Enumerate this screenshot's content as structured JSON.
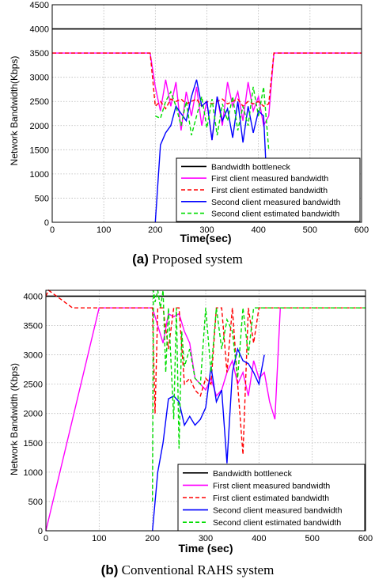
{
  "captions": [
    {
      "tag": "(a)",
      "text": "Proposed system"
    },
    {
      "tag": "(b)",
      "text": "Conventional RAHS system"
    }
  ],
  "colors": {
    "bottleneck": "#000000",
    "first_measured": "#ff00ff",
    "first_estimated": "#ff0000",
    "second_measured": "#0000ff",
    "second_estimated": "#00dd00"
  },
  "chart_data": [
    {
      "type": "line",
      "xlabel": "Time(sec)",
      "ylabel": "Network Bandwidth(Kbps)",
      "xlim": [
        0,
        600
      ],
      "ylim": [
        0,
        4500
      ],
      "xticks": [
        0,
        100,
        200,
        300,
        400,
        500,
        600
      ],
      "yticks": [
        0,
        500,
        1000,
        1500,
        2000,
        2500,
        3000,
        3500,
        4000,
        4500
      ],
      "grid": true,
      "legend_position": "bottom-right",
      "series": [
        {
          "name": "Bandwidth bottleneck",
          "style": "solid",
          "color_key": "bottleneck",
          "x": [
            0,
            600
          ],
          "y": [
            4000,
            4000
          ]
        },
        {
          "name": "First client measured bandwidth",
          "style": "solid",
          "color_key": "first_measured",
          "x": [
            0,
            190,
            200,
            210,
            220,
            230,
            240,
            250,
            260,
            270,
            280,
            290,
            300,
            310,
            320,
            330,
            340,
            350,
            360,
            370,
            380,
            390,
            400,
            410,
            420,
            430,
            600
          ],
          "y": [
            3500,
            3500,
            2800,
            2300,
            2950,
            2400,
            2900,
            1900,
            2700,
            2200,
            2800,
            2000,
            2500,
            1700,
            2600,
            2000,
            2900,
            2400,
            2700,
            2100,
            2900,
            2300,
            2600,
            2000,
            2200,
            3500,
            3500
          ]
        },
        {
          "name": "First client estimated bandwidth",
          "style": "dashed",
          "color_key": "first_estimated",
          "x": [
            0,
            190,
            200,
            210,
            220,
            230,
            240,
            250,
            260,
            270,
            280,
            290,
            300,
            310,
            320,
            330,
            340,
            350,
            360,
            370,
            380,
            390,
            400,
            410,
            420,
            430,
            600
          ],
          "y": [
            3500,
            3500,
            2400,
            2500,
            2350,
            2550,
            2500,
            2550,
            2450,
            2500,
            2550,
            2400,
            2500,
            2450,
            2500,
            2550,
            2450,
            2500,
            2550,
            2400,
            2500,
            2450,
            2500,
            2400,
            2450,
            3500,
            3500
          ]
        },
        {
          "name": "Second client measured bandwidth",
          "style": "solid",
          "color_key": "second_measured",
          "x": [
            200,
            210,
            220,
            230,
            240,
            250,
            260,
            270,
            280,
            290,
            300,
            310,
            320,
            330,
            340,
            350,
            360,
            370,
            380,
            390,
            400,
            410,
            415
          ],
          "y": [
            0,
            1600,
            1850,
            2000,
            2400,
            2250,
            2100,
            2600,
            2950,
            2400,
            2500,
            1700,
            2600,
            2100,
            2350,
            1750,
            2500,
            1650,
            2400,
            1850,
            2300,
            2200,
            1100
          ]
        },
        {
          "name": "Second client estimated bandwidth",
          "style": "dashed",
          "color_key": "second_estimated",
          "x": [
            200,
            210,
            220,
            230,
            240,
            250,
            260,
            270,
            280,
            290,
            300,
            310,
            320,
            330,
            340,
            350,
            360,
            370,
            380,
            390,
            400,
            410,
            420
          ],
          "y": [
            2200,
            2150,
            2500,
            2700,
            2400,
            2000,
            2500,
            1800,
            2200,
            2600,
            1950,
            2550,
            1800,
            2450,
            2100,
            2600,
            1900,
            2400,
            2000,
            2800,
            2200,
            2800,
            1500
          ]
        }
      ]
    },
    {
      "type": "line",
      "xlabel": "Time (sec)",
      "ylabel": "Network Bandwidth (Kbps)",
      "xlim": [
        0,
        600
      ],
      "ylim": [
        0,
        4100
      ],
      "xticks": [
        0,
        100,
        200,
        300,
        400,
        500,
        600
      ],
      "yticks": [
        0,
        500,
        1000,
        1500,
        2000,
        2500,
        3000,
        3500,
        4000
      ],
      "grid": true,
      "legend_position": "bottom-right",
      "series": [
        {
          "name": "Bandwidth bottleneck",
          "style": "solid",
          "color_key": "bottleneck",
          "x": [
            0,
            600
          ],
          "y": [
            4000,
            4000
          ]
        },
        {
          "name": "First client measured bandwidth",
          "style": "solid",
          "color_key": "first_measured",
          "x": [
            0,
            100,
            200,
            210,
            220,
            230,
            240,
            250,
            260,
            270,
            280,
            290,
            300,
            310,
            320,
            330,
            340,
            350,
            360,
            370,
            380,
            390,
            400,
            410,
            420,
            430,
            440
          ],
          "y": [
            0,
            3800,
            3800,
            3500,
            3200,
            3700,
            3650,
            3700,
            3400,
            3200,
            2600,
            2500,
            2400,
            2600,
            2300,
            2400,
            2700,
            2900,
            2500,
            2700,
            2300,
            2900,
            2600,
            2700,
            2200,
            1900,
            3800
          ]
        },
        {
          "name": "First client estimated bandwidth",
          "style": "dashed",
          "color_key": "first_estimated",
          "x": [
            0,
            5,
            50,
            200,
            205,
            210,
            220,
            230,
            240,
            250,
            260,
            270,
            280,
            290,
            300,
            310,
            320,
            330,
            340,
            350,
            360,
            370,
            380,
            390,
            400,
            420,
            600
          ],
          "y": [
            4000,
            4100,
            3800,
            3800,
            2000,
            3800,
            3800,
            3100,
            3800,
            3800,
            2500,
            2600,
            2400,
            2300,
            2600,
            2500,
            3800,
            3800,
            2700,
            3800,
            2500,
            1300,
            3800,
            3200,
            3800,
            3800,
            3800
          ]
        },
        {
          "name": "Second client measured bandwidth",
          "style": "solid",
          "color_key": "second_measured",
          "x": [
            200,
            210,
            220,
            230,
            240,
            250,
            260,
            270,
            280,
            290,
            300,
            310,
            320,
            330,
            340,
            350,
            360,
            370,
            380,
            390,
            400,
            410
          ],
          "y": [
            0,
            1000,
            1500,
            2250,
            2300,
            2200,
            1800,
            1950,
            1800,
            1900,
            2100,
            2800,
            2200,
            2400,
            1150,
            2700,
            3100,
            2900,
            2850,
            2700,
            2500,
            3000
          ]
        },
        {
          "name": "Second client estimated bandwidth",
          "style": "dashed",
          "color_key": "second_estimated",
          "x": [
            200,
            202,
            205,
            210,
            215,
            220,
            225,
            230,
            240,
            245,
            250,
            255,
            260,
            270,
            280,
            290,
            300,
            310,
            320,
            330,
            340,
            350,
            360,
            370,
            380,
            390,
            400,
            600
          ],
          "y": [
            500,
            4100,
            3900,
            4100,
            3800,
            4100,
            2700,
            3800,
            1900,
            3800,
            1400,
            3400,
            2800,
            3100,
            2600,
            2500,
            3800,
            2700,
            3800,
            3100,
            3600,
            3400,
            2600,
            3800,
            3000,
            3800,
            3800,
            3800
          ]
        }
      ]
    }
  ]
}
